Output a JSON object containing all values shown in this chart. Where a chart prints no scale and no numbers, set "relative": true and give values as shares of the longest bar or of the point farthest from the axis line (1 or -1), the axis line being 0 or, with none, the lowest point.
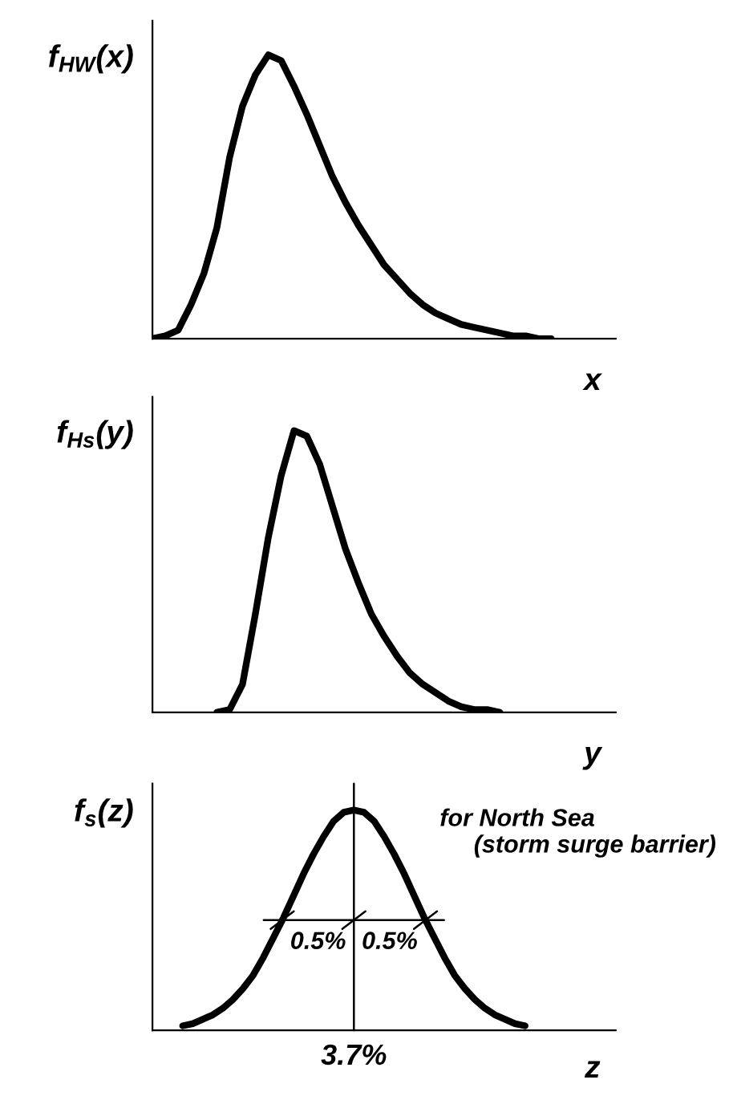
{
  "chart_data": [
    {
      "type": "line",
      "relative": true,
      "ylabel": "f$_{HW}$(x)",
      "xlabel": "x",
      "categories": [
        null,
        null,
        null,
        null,
        null,
        null,
        null,
        null,
        null,
        null,
        null,
        null,
        null,
        null,
        null,
        null,
        null,
        null,
        null,
        null,
        null,
        null,
        null,
        null,
        null,
        null,
        null,
        null,
        null,
        null,
        null,
        null,
        null,
        null,
        null,
        null,
        null
      ],
      "series": [
        {
          "color": "#000000",
          "values": [
            0.0,
            0.01,
            0.03,
            0.12,
            0.23,
            0.39,
            0.64,
            0.82,
            0.93,
            1.0,
            0.98,
            0.89,
            0.79,
            0.68,
            0.57,
            0.48,
            0.4,
            0.33,
            0.26,
            0.21,
            0.16,
            0.12,
            0.09,
            0.07,
            0.05,
            0.04,
            0.03,
            0.02,
            0.01,
            0.01,
            0.0,
            0.0,
            null,
            null,
            null,
            null,
            null
          ]
        }
      ]
    },
    {
      "type": "line",
      "relative": true,
      "ylabel": "f$_{Hs}$(y)",
      "xlabel": "y",
      "categories": [
        null,
        null,
        null,
        null,
        null,
        null,
        null,
        null,
        null,
        null,
        null,
        null,
        null,
        null,
        null,
        null,
        null,
        null,
        null,
        null,
        null,
        null,
        null,
        null,
        null,
        null,
        null,
        null,
        null,
        null,
        null,
        null,
        null,
        null,
        null,
        null,
        null
      ],
      "series": [
        {
          "color": "#000000",
          "values": [
            null,
            null,
            null,
            null,
            null,
            0.0,
            0.01,
            0.1,
            0.35,
            0.62,
            0.84,
            1.0,
            0.98,
            0.88,
            0.73,
            0.58,
            0.46,
            0.35,
            0.27,
            0.2,
            0.14,
            0.1,
            0.07,
            0.04,
            0.02,
            0.01,
            0.01,
            0.0,
            null,
            null,
            null,
            null,
            null,
            null,
            null,
            null,
            null
          ]
        }
      ]
    },
    {
      "type": "line",
      "relative": true,
      "ylabel": "f$_{s}$(z)",
      "xlabel": "z",
      "categories": [
        null,
        null,
        null,
        null,
        null,
        null,
        null,
        null,
        null,
        null,
        null,
        null,
        null,
        null,
        null,
        null,
        null,
        null,
        null,
        null,
        null,
        null,
        null,
        null,
        null,
        null,
        null,
        null,
        null,
        null,
        null,
        null,
        null,
        null,
        null,
        null,
        null,
        null,
        null,
        null,
        null,
        null,
        null,
        null,
        null,
        null,
        null
      ],
      "series": [
        {
          "color": "#000000",
          "values": [
            null,
            null,
            null,
            0.02,
            0.03,
            0.05,
            0.07,
            0.1,
            0.14,
            0.19,
            0.25,
            0.33,
            0.42,
            0.51,
            0.61,
            0.71,
            0.8,
            0.88,
            0.95,
            0.99,
            1.0,
            0.99,
            0.95,
            0.88,
            0.8,
            0.71,
            0.61,
            0.51,
            0.42,
            0.33,
            0.25,
            0.19,
            0.14,
            0.1,
            0.07,
            0.05,
            0.03,
            0.02,
            null,
            null,
            null,
            null,
            null,
            null,
            null,
            null,
            null
          ]
        }
      ],
      "ref_lines": [
        {
          "axis": "x",
          "label": "3.7%"
        }
      ],
      "annotations": [
        "for North Sea\n     (storm surge barrier)",
        "0.5%",
        "0.5%"
      ]
    }
  ]
}
